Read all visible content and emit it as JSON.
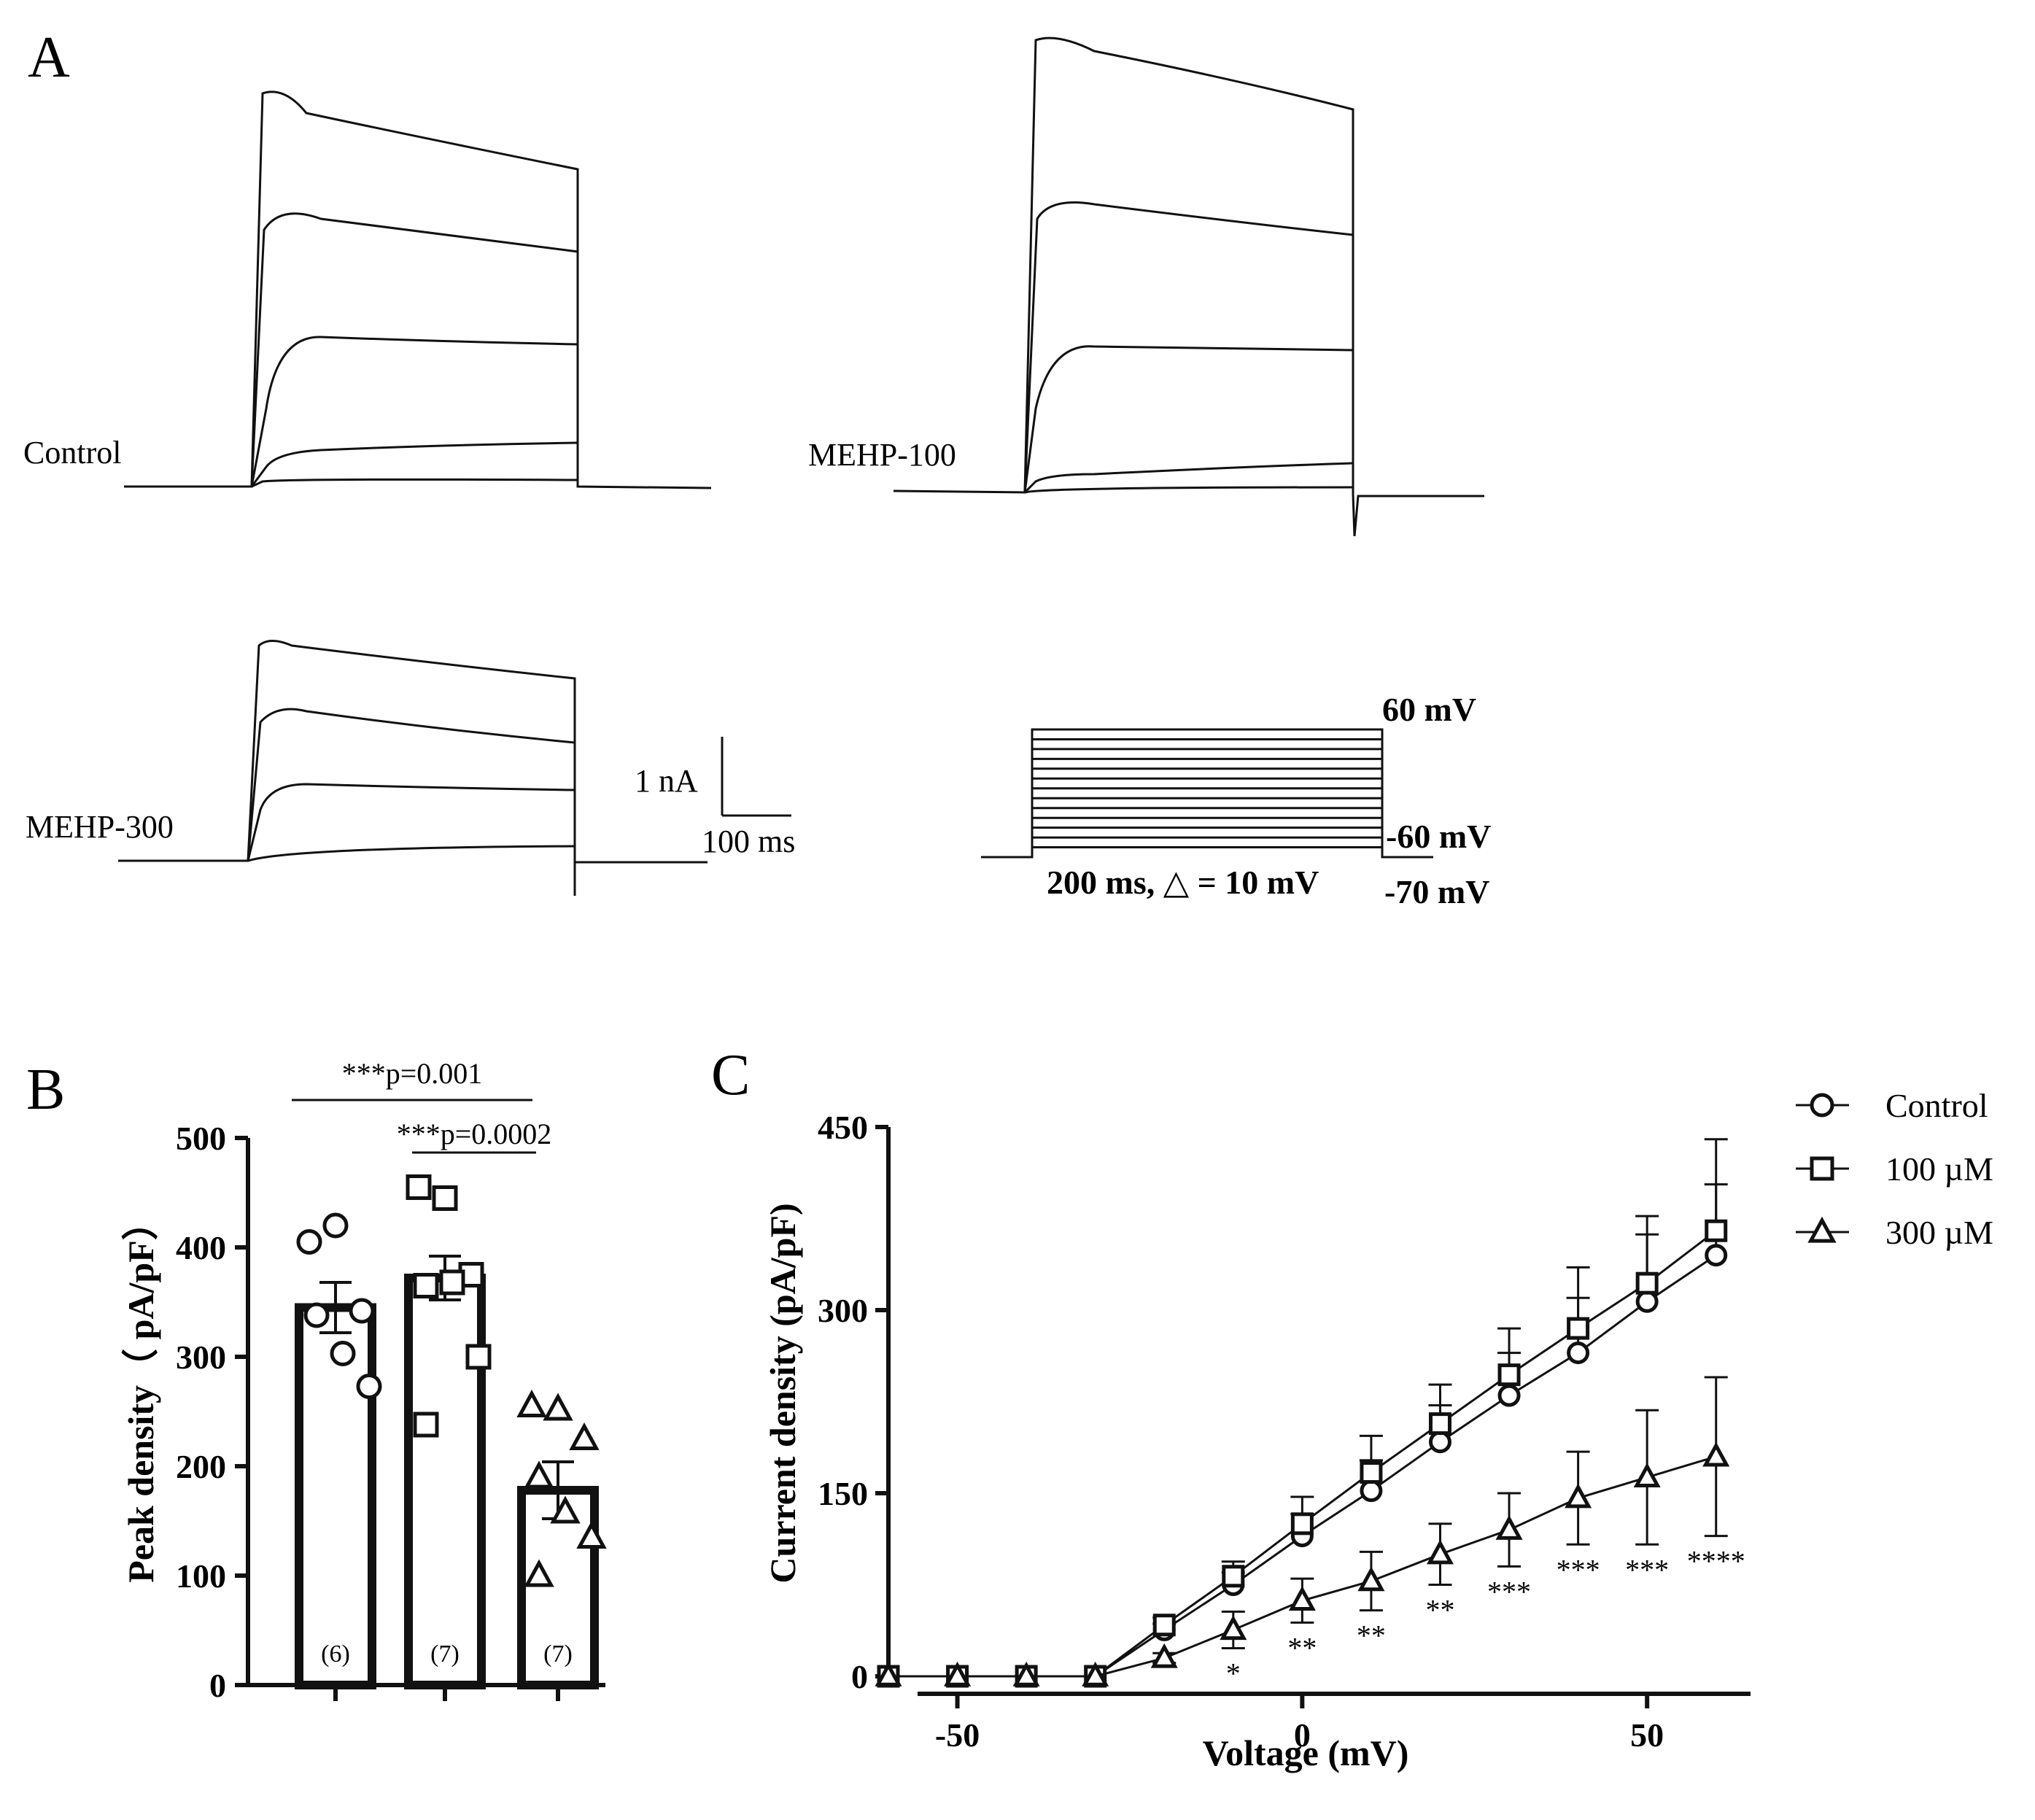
{
  "panels": {
    "a": {
      "letter": "A",
      "traces": [
        {
          "label": "Control"
        },
        {
          "label": "MEHP-100"
        },
        {
          "label": "MEHP-300"
        }
      ],
      "scalebar": {
        "current": "1 nA",
        "time": "100 ms"
      },
      "protocol": {
        "top": "60 mV",
        "bottom": "-60 mV",
        "holding": "-70 mV",
        "step": "200 ms, △ = 10 mV"
      }
    },
    "b": {
      "letter": "B"
    },
    "c": {
      "letter": "C"
    }
  },
  "chart_data": [
    {
      "type": "bar",
      "panel": "B",
      "ylabel": "Peak density（ pA/pF）",
      "ylim": [
        0,
        500
      ],
      "yticks": [
        0,
        100,
        200,
        300,
        400,
        500
      ],
      "categories": [
        "Control",
        "100 µM",
        "300 µM"
      ],
      "values": [
        345,
        372,
        178
      ],
      "sem": [
        23,
        20,
        26
      ],
      "n_labels": [
        "(6)",
        "(7)",
        "(7)"
      ],
      "markers": [
        "circle",
        "square",
        "triangle"
      ],
      "points": [
        [
          405,
          420,
          342,
          338,
          303,
          273
        ],
        [
          455,
          445,
          375,
          365,
          368,
          300,
          238
        ],
        [
          255,
          252,
          225,
          190,
          158,
          135,
          100
        ]
      ],
      "significance": [
        {
          "label": "***p=0.001",
          "from": 0,
          "to": 2
        },
        {
          "label": "***p=0.0002",
          "from": 1,
          "to": 2
        }
      ]
    },
    {
      "type": "line",
      "panel": "C",
      "xlabel": "Voltage (mV)",
      "ylabel": "Current density (pA/pF)",
      "xlim": [
        -60,
        65
      ],
      "ylim": [
        0,
        450
      ],
      "xticks": [
        -50,
        0,
        50
      ],
      "yticks": [
        0,
        150,
        300,
        450
      ],
      "x": [
        -60,
        -50,
        -40,
        -30,
        -20,
        -10,
        0,
        10,
        20,
        30,
        40,
        50,
        60
      ],
      "series": [
        {
          "name": "Control",
          "marker": "circle",
          "values": [
            0,
            0,
            0,
            0,
            38,
            75,
            115,
            152,
            192,
            230,
            265,
            307,
            345
          ],
          "err": [
            0,
            0,
            0,
            0,
            5,
            10,
            18,
            25,
            30,
            35,
            45,
            55,
            58
          ]
        },
        {
          "name": "100 µM",
          "marker": "square",
          "values": [
            0,
            0,
            0,
            0,
            42,
            82,
            125,
            167,
            207,
            247,
            285,
            322,
            365
          ],
          "err": [
            0,
            0,
            0,
            0,
            6,
            12,
            22,
            30,
            32,
            38,
            50,
            55,
            75
          ]
        },
        {
          "name": "300 µM",
          "marker": "triangle",
          "values": [
            0,
            0,
            0,
            0,
            15,
            38,
            62,
            78,
            100,
            120,
            146,
            163,
            180
          ],
          "err": [
            0,
            0,
            0,
            0,
            4,
            15,
            18,
            24,
            25,
            30,
            38,
            55,
            65
          ]
        }
      ],
      "significance": [
        {
          "x": -10,
          "label": "*"
        },
        {
          "x": 0,
          "label": "**"
        },
        {
          "x": 10,
          "label": "**"
        },
        {
          "x": 20,
          "label": "**"
        },
        {
          "x": 30,
          "label": "***"
        },
        {
          "x": 40,
          "label": "***"
        },
        {
          "x": 50,
          "label": "***"
        },
        {
          "x": 60,
          "label": "****"
        }
      ]
    }
  ]
}
